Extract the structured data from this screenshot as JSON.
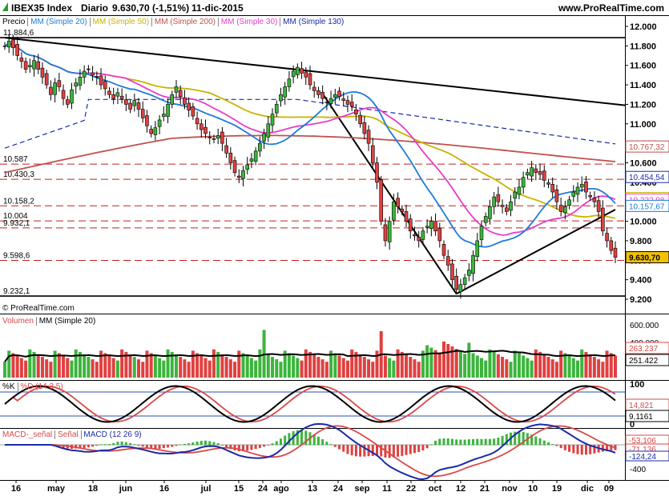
{
  "header": {
    "symbol": "IBEX35 Index",
    "period": "Diario",
    "last": "9.630,70 (-1,51%)",
    "date": "11-dic-2015",
    "site": "www.ProRealTime.com"
  },
  "legend_main": [
    {
      "label": "Precio",
      "color": "#000000"
    },
    {
      "label": "MM (Simple 20)",
      "color": "#1e7bd6"
    },
    {
      "label": "MM (Simple 50)",
      "color": "#c8b400"
    },
    {
      "label": "MM (Simple 200)",
      "color": "#c0504d"
    },
    {
      "label": "MM (Simple 30)",
      "color": "#e83cc8"
    },
    {
      "label": "MM (Simple 130)",
      "color": "#1a2aa8"
    }
  ],
  "copyright": "© ProRealTime.com",
  "legend_volume": [
    {
      "label": "Volumen",
      "color": "#d94848"
    },
    {
      "label": "MM (Simple 20)",
      "color": "#000000"
    }
  ],
  "legend_stoch": [
    {
      "label": "%K",
      "color": "#000000"
    },
    {
      "label": "%D (14 3 5)",
      "color": "#d94848"
    }
  ],
  "legend_macd": [
    {
      "label": "MACD-_señal",
      "color": "#d94848"
    },
    {
      "label": "Señal",
      "color": "#d94848"
    },
    {
      "label": "MACD (12 26 9)",
      "color": "#1a2aa8"
    }
  ],
  "colors": {
    "up": "#3cb43c",
    "down": "#e04040",
    "ma20": "#1e7bd6",
    "ma50": "#c8b400",
    "ma200": "#c0504d",
    "ma30": "#e83cc8",
    "ma130": "#1a2aa8",
    "line": "#000000"
  },
  "chart_data": {
    "type": "candlestick",
    "price_axis": {
      "min": 9200,
      "max": 12000,
      "ticks": [
        "12.000",
        "11.800",
        "11.600",
        "11.400",
        "11.200",
        "11.000",
        "10.800",
        "10.600",
        "10.400",
        "10.200",
        "10.000",
        "9.800",
        "9.600",
        "9.400",
        "9.200"
      ],
      "tick_values": [
        12000,
        11800,
        11600,
        11400,
        11200,
        11000,
        10800,
        10600,
        10400,
        10200,
        10000,
        9800,
        9600,
        9400,
        9200
      ]
    },
    "left_levels": [
      {
        "label": "11.884,6",
        "value": 11884.6,
        "style": "solid"
      },
      {
        "label": "10.587",
        "value": 10587,
        "style": "dashed"
      },
      {
        "label": "10.430,3",
        "value": 10430.3,
        "style": "dashed"
      },
      {
        "label": "10.158,2",
        "value": 10158.2,
        "style": "dashed"
      },
      {
        "label": "10.004",
        "value": 10004,
        "style": "dashed"
      },
      {
        "label": "9.932,1",
        "value": 9932.1,
        "style": "dashed"
      },
      {
        "label": "9.598,6",
        "value": 9598.6,
        "style": "dashed"
      },
      {
        "label": "9.232,1",
        "value": 9232.1,
        "style": "solid"
      }
    ],
    "right_values": [
      {
        "label": "10.767,32",
        "value": 10767.32,
        "color": "#c0504d"
      },
      {
        "label": "10.454,54",
        "value": 10454.54,
        "color": "#1a2aa8"
      },
      {
        "label": "10.238,09",
        "value": 10238.09,
        "color": "#c8b400"
      },
      {
        "label": "10.222,98",
        "value": 10222.98,
        "color": "#e83cc8"
      },
      {
        "label": "10.157,67",
        "value": 10157.67,
        "color": "#1e7bd6"
      },
      {
        "label": "9.630,70",
        "value": 9630.7,
        "color": "#000000"
      }
    ],
    "x_labels": [
      "16",
      "may",
      "18",
      "jun",
      "16",
      "jul",
      "15",
      "24",
      "ago",
      "13",
      "24",
      "sep",
      "11",
      "22",
      "oct",
      "12",
      "21",
      "nov",
      "10",
      "19",
      "dic",
      "09"
    ],
    "closes": [
      11800,
      11850,
      11780,
      11700,
      11640,
      11560,
      11600,
      11650,
      11560,
      11480,
      11400,
      11300,
      11420,
      11380,
      11260,
      11200,
      11350,
      11420,
      11480,
      11540,
      11560,
      11500,
      11480,
      11400,
      11360,
      11300,
      11260,
      11320,
      11260,
      11200,
      11150,
      11240,
      11150,
      11060,
      10980,
      10900,
      10960,
      11040,
      11100,
      11200,
      11300,
      11380,
      11280,
      11200,
      11140,
      11080,
      11000,
      10940,
      10900,
      10860,
      10840,
      10880,
      10800,
      10700,
      10600,
      10500,
      10450,
      10520,
      10580,
      10640,
      10720,
      10800,
      10900,
      11000,
      11100,
      11200,
      11300,
      11380,
      11460,
      11540,
      11580,
      11520,
      11480,
      11400,
      11340,
      11300,
      11260,
      11220,
      11260,
      11300,
      11280,
      11240,
      11200,
      11180,
      11100,
      11000,
      10900,
      10800,
      10600,
      10400,
      10000,
      9800,
      10000,
      10200,
      10150,
      10100,
      10000,
      9900,
      9850,
      9800,
      9900,
      9950,
      10000,
      9900,
      9800,
      9650,
      9550,
      9400,
      9300,
      9350,
      9420,
      9500,
      9650,
      9800,
      9950,
      10050,
      10150,
      10250,
      10200,
      10150,
      10100,
      10200,
      10300,
      10350,
      10450,
      10500,
      10550,
      10500,
      10480,
      10420,
      10380,
      10300,
      10200,
      10100,
      10150,
      10220,
      10300,
      10350,
      10380,
      10300,
      10250,
      10200,
      10100,
      9900,
      9800,
      9700,
      9630.7
    ],
    "ma20": [
      11500,
      11520,
      11540,
      11560,
      11570,
      11560,
      11540,
      11520,
      11500,
      11480,
      11460,
      11440,
      11420,
      11400,
      11380,
      11360,
      11360,
      11380,
      11400,
      11420,
      11430,
      11440,
      11440,
      11430,
      11420,
      11400,
      11380,
      11360,
      11340,
      11320,
      11300,
      11280,
      11260,
      11230,
      11200,
      11160,
      11120,
      11090,
      11070,
      11060,
      11070,
      11090,
      11110,
      11120,
      11120,
      11110,
      11100,
      11080,
      11060,
      11040,
      11020,
      11000,
      10980,
      10960,
      10940,
      10920,
      10900,
      10890,
      10880,
      10880,
      10890,
      10900,
      10920,
      10950,
      10980,
      11020,
      11060,
      11100,
      11140,
      11180,
      11220,
      11250,
      11270,
      11280,
      11290,
      11290,
      11290,
      11280,
      11270,
      11260,
      11250,
      11240,
      11230,
      11220,
      11200,
      11180,
      11150,
      11120,
      11080,
      11030,
      10970,
      10910,
      10850,
      10790,
      10730,
      10670,
      10610,
      10550,
      10490,
      10430,
      10370,
      10310,
      10250,
      10190,
      10130,
      10070,
      10010,
      9950,
      9890,
      9840,
      9800,
      9780,
      9770,
      9780,
      9800,
      9830,
      9870,
      9920,
      9970,
      10020,
      10060,
      10100,
      10140,
      10170,
      10200,
      10220,
      10240,
      10250,
      10260,
      10260,
      10250,
      10240,
      10230,
      10220,
      10210,
      10200,
      10200,
      10200,
      10200,
      10200,
      10190,
      10180,
      10170,
      10160,
      10157.67,
      10157.67,
      10157.67
    ],
    "volume": {
      "axis_ticks": [
        "600.000",
        "400.000",
        "200.000"
      ],
      "tick_values": [
        600000,
        400000,
        200000
      ],
      "right_values": [
        "263.237",
        "251.422"
      ]
    },
    "stochastic": {
      "axis_ticks": [
        "100",
        "50",
        "0"
      ],
      "tick_values": [
        100,
        50,
        0
      ],
      "right_values": [
        "14,821",
        "9,1161"
      ]
    },
    "macd": {
      "axis_ticks": [
        "-400"
      ],
      "tick_values": [
        -400
      ],
      "right_values": [
        "-53,106",
        "-71,136",
        "-124,24"
      ]
    }
  }
}
